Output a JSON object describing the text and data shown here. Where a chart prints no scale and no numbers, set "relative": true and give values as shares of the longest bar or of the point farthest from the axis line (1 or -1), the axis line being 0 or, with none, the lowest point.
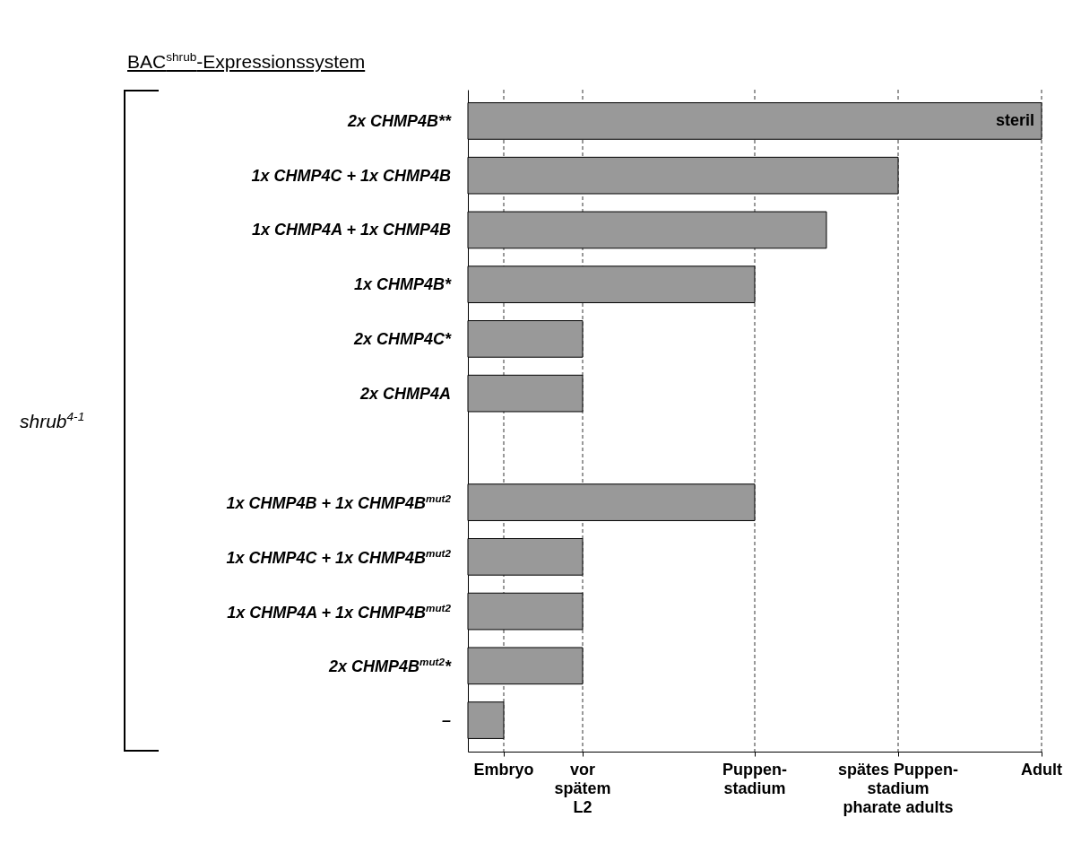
{
  "chart_data": {
    "type": "bar",
    "orientation": "horizontal",
    "relative": true,
    "title": "BAC$^{shrub}$-Expressionssystem",
    "categories": [
      "2x CHMP4B**",
      "1x CHMP4C + 1x CHMP4B",
      "1x CHMP4A + 1x CHMP4B",
      "1x CHMP4B*",
      "2x CHMP4C*",
      "2x CHMP4A",
      null,
      "1x CHMP4B + 1x CHMP4B$^{mut2}$",
      "1x CHMP4C + 1x CHMP4B$^{mut2}$",
      "1x CHMP4A + 1x CHMP4B$^{mut2}$",
      "2x CHMP4B$^{mut2}$*",
      "–"
    ],
    "values": [
      1,
      0.75,
      0.625,
      0.5,
      0.2,
      0.2,
      null,
      0.5,
      0.2,
      0.2,
      0.2,
      0.0625
    ],
    "color": "#999999",
    "ref_lines": [
      {
        "axis": "x",
        "value": 0.0625,
        "label": "Embryo",
        "color": "#999999",
        "line_style": "dashed"
      },
      {
        "axis": "x",
        "value": 0.2,
        "label": "vor\nspätem\nL2",
        "color": "#999999",
        "line_style": "dashed"
      },
      {
        "axis": "x",
        "value": 0.5,
        "label": "Puppen-\nstadium",
        "color": "#999999",
        "line_style": "dashed"
      },
      {
        "axis": "x",
        "value": 0.75,
        "label": "spätes Puppen-\nstadium\npharate adults",
        "color": "#999999",
        "line_style": "dashed"
      },
      {
        "axis": "x",
        "value": 1,
        "label": "Adult",
        "color": "#999999",
        "line_style": "dashed"
      }
    ],
    "annotations": [
      "shrub$^{4-1}$",
      {
        "text": "steril",
        "x": 1,
        "y": "2x CHMP4B**"
      }
    ]
  }
}
